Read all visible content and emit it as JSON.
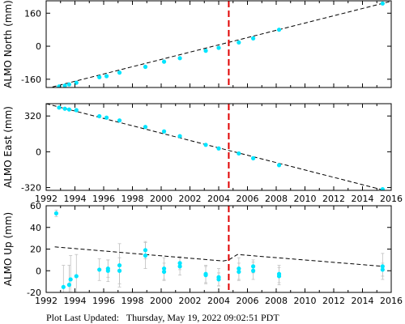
{
  "footer": {
    "label": "Plot Last Updated:",
    "timestamp": "Thursday, May 19, 2022 09:02:51 PDT"
  },
  "chart_data": [
    {
      "type": "scatter",
      "ylabel": "ALMO North (mm)",
      "xlim": [
        1992,
        2016
      ],
      "ylim": [
        -200,
        220
      ],
      "xticks": [
        1992,
        1994,
        1996,
        1998,
        2000,
        2002,
        2004,
        2006,
        2008,
        2010,
        2012,
        2014,
        2016
      ],
      "yticks": [
        -160,
        0,
        160
      ],
      "x_tick_labels_shown": false,
      "event_line_x": 2004.7,
      "colors": {
        "points": "#00e5ff",
        "trend": "#000000",
        "event": "#e00000"
      },
      "trend": [
        [
          1992.0,
          -205
        ],
        [
          2016.0,
          218
        ]
      ],
      "points": [
        {
          "x": 1992.9,
          "y": -195,
          "err": 5
        },
        {
          "x": 1993.3,
          "y": -191,
          "err": 5
        },
        {
          "x": 1993.6,
          "y": -185,
          "err": 5
        },
        {
          "x": 1994.1,
          "y": -177,
          "err": 5
        },
        {
          "x": 1995.7,
          "y": -150,
          "err": 5
        },
        {
          "x": 1996.2,
          "y": -145,
          "err": 5
        },
        {
          "x": 1997.1,
          "y": -128,
          "err": 5
        },
        {
          "x": 1998.9,
          "y": -100,
          "err": 5
        },
        {
          "x": 2000.2,
          "y": -75,
          "err": 5
        },
        {
          "x": 2001.3,
          "y": -58,
          "err": 5
        },
        {
          "x": 2003.1,
          "y": -22,
          "err": 5
        },
        {
          "x": 2004.0,
          "y": -8,
          "err": 5
        },
        {
          "x": 2005.4,
          "y": 18,
          "err": 5
        },
        {
          "x": 2006.4,
          "y": 38,
          "err": 5
        },
        {
          "x": 2008.2,
          "y": 80,
          "err": 5
        },
        {
          "x": 2015.4,
          "y": 207,
          "err": 5
        }
      ]
    },
    {
      "type": "scatter",
      "ylabel": "ALMO East (mm)",
      "xlim": [
        1992,
        2016
      ],
      "ylim": [
        -345,
        430
      ],
      "xticks": [
        1992,
        1994,
        1996,
        1998,
        2000,
        2002,
        2004,
        2006,
        2008,
        2010,
        2012,
        2014,
        2016
      ],
      "yticks": [
        -320,
        0,
        320
      ],
      "x_tick_labels_shown": true,
      "event_line_x": 2004.7,
      "colors": {
        "points": "#00e5ff",
        "trend": "#000000",
        "event": "#e00000"
      },
      "trend": [
        [
          1992.0,
          430
        ],
        [
          2016.0,
          -360
        ]
      ],
      "points": [
        {
          "x": 1992.9,
          "y": 395,
          "err": 8
        },
        {
          "x": 1993.3,
          "y": 385,
          "err": 8
        },
        {
          "x": 1993.6,
          "y": 378,
          "err": 8
        },
        {
          "x": 1994.1,
          "y": 372,
          "err": 8
        },
        {
          "x": 1995.7,
          "y": 318,
          "err": 8
        },
        {
          "x": 1996.2,
          "y": 305,
          "err": 8
        },
        {
          "x": 1997.1,
          "y": 280,
          "err": 8
        },
        {
          "x": 1998.9,
          "y": 222,
          "err": 8
        },
        {
          "x": 2000.2,
          "y": 182,
          "err": 8
        },
        {
          "x": 2001.3,
          "y": 140,
          "err": 8
        },
        {
          "x": 2003.1,
          "y": 62,
          "err": 8
        },
        {
          "x": 2004.0,
          "y": 30,
          "err": 8
        },
        {
          "x": 2005.4,
          "y": -15,
          "err": 8
        },
        {
          "x": 2006.4,
          "y": -58,
          "err": 8
        },
        {
          "x": 2008.2,
          "y": -120,
          "err": 8
        },
        {
          "x": 2015.4,
          "y": -335,
          "err": 8
        }
      ]
    },
    {
      "type": "scatter",
      "ylabel": "ALMO Up (mm)",
      "xlim": [
        1992,
        2016
      ],
      "ylim": [
        -20,
        60
      ],
      "xticks": [
        1992,
        1994,
        1996,
        1998,
        2000,
        2002,
        2004,
        2006,
        2008,
        2010,
        2012,
        2014,
        2016
      ],
      "yticks": [
        -20,
        0,
        20,
        40,
        60
      ],
      "x_tick_labels_shown": true,
      "event_line_x": 2004.7,
      "colors": {
        "points": "#00e5ff",
        "trend": "#000000",
        "event": "#e00000",
        "errorbar": "#c0c0c0"
      },
      "trend": [
        [
          1992.6,
          22
        ],
        [
          2004.3,
          9
        ],
        [
          2004.3,
          9
        ],
        [
          2004.7,
          10
        ],
        [
          2004.7,
          10
        ],
        [
          2005.3,
          15
        ],
        [
          2015.5,
          4
        ]
      ],
      "points": [
        {
          "x": 1992.7,
          "y": 53,
          "err": 3
        },
        {
          "x": 1993.2,
          "y": -15,
          "err": 20
        },
        {
          "x": 1993.6,
          "y": -13,
          "err": 18
        },
        {
          "x": 1993.7,
          "y": -8,
          "err": 22
        },
        {
          "x": 1994.1,
          "y": -5,
          "err": 20
        },
        {
          "x": 1995.7,
          "y": 1,
          "err": 10
        },
        {
          "x": 1996.3,
          "y": 0,
          "err": 10
        },
        {
          "x": 1996.3,
          "y": 2,
          "err": 8
        },
        {
          "x": 1997.1,
          "y": 0,
          "err": 12
        },
        {
          "x": 1997.1,
          "y": 5,
          "err": 20
        },
        {
          "x": 1998.9,
          "y": 14,
          "err": 12
        },
        {
          "x": 1998.9,
          "y": 19,
          "err": 8
        },
        {
          "x": 2000.2,
          "y": -1,
          "err": 8
        },
        {
          "x": 2000.2,
          "y": 2,
          "err": 10
        },
        {
          "x": 2001.3,
          "y": 4,
          "err": 8
        },
        {
          "x": 2001.3,
          "y": 7,
          "err": 6
        },
        {
          "x": 2003.1,
          "y": -4,
          "err": 8
        },
        {
          "x": 2003.1,
          "y": -3,
          "err": 8
        },
        {
          "x": 2004.0,
          "y": -6,
          "err": 8
        },
        {
          "x": 2004.0,
          "y": -8,
          "err": 6
        },
        {
          "x": 2005.4,
          "y": -1,
          "err": 8
        },
        {
          "x": 2005.4,
          "y": 2,
          "err": 10
        },
        {
          "x": 2006.4,
          "y": 0,
          "err": 8
        },
        {
          "x": 2006.4,
          "y": 4,
          "err": 6
        },
        {
          "x": 2008.2,
          "y": -5,
          "err": 8
        },
        {
          "x": 2008.2,
          "y": -3,
          "err": 8
        },
        {
          "x": 2015.4,
          "y": 1,
          "err": 6
        },
        {
          "x": 2015.4,
          "y": 4,
          "err": 12
        }
      ]
    }
  ]
}
